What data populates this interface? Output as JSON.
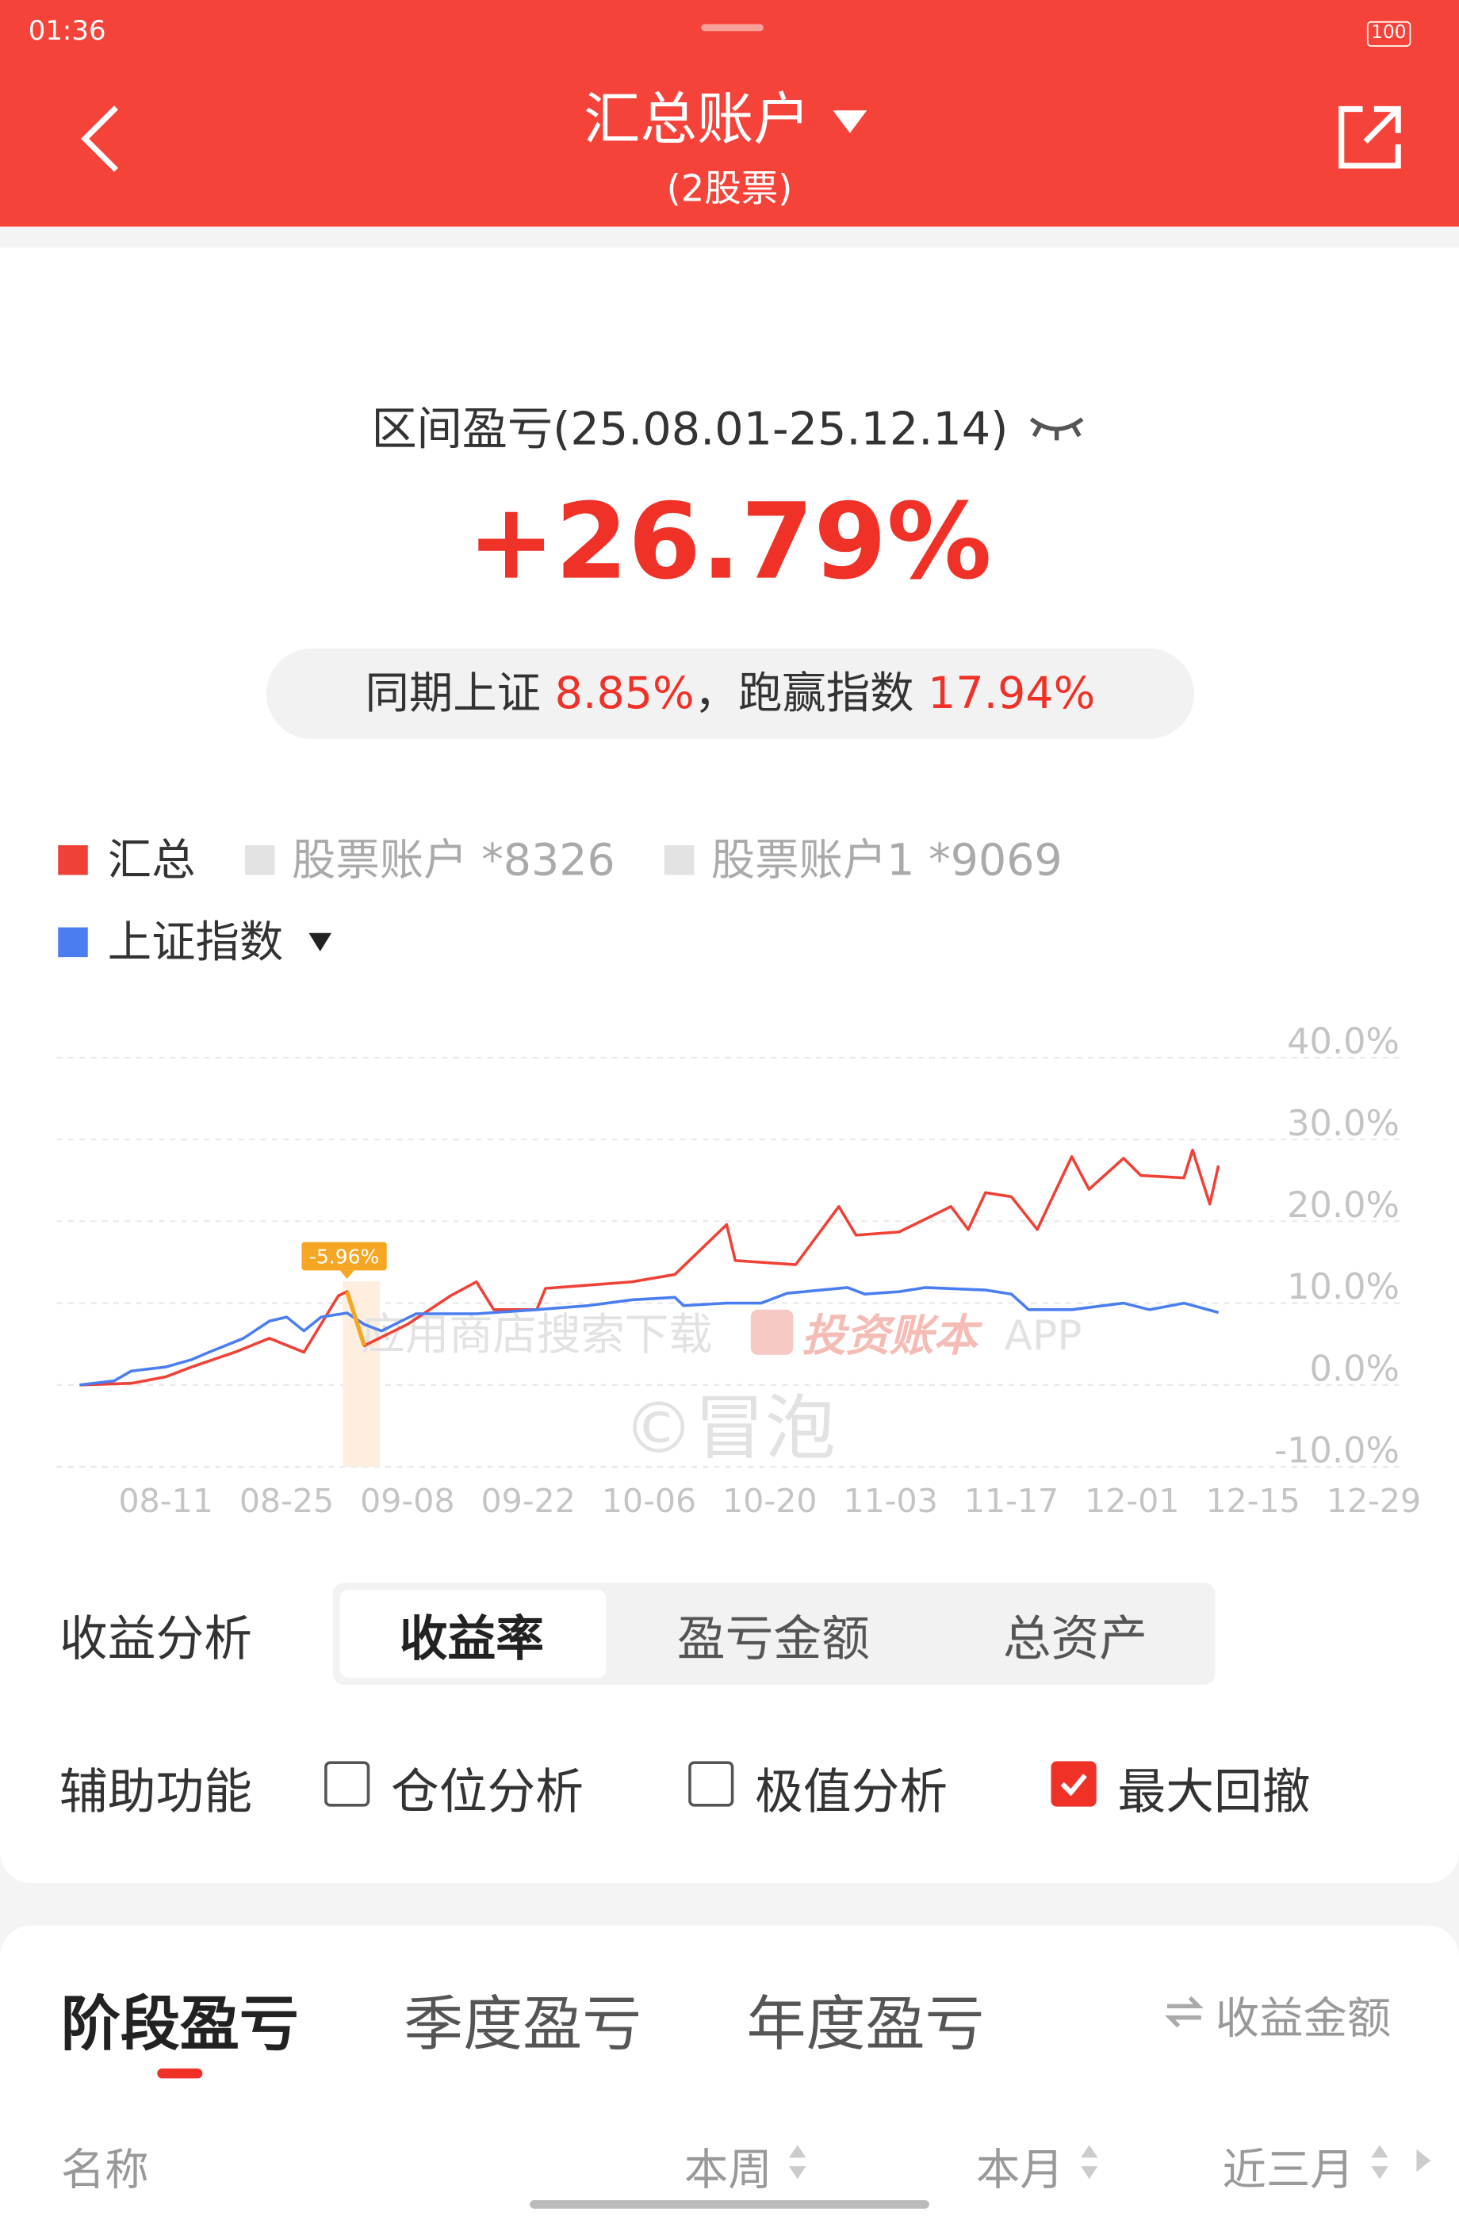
{
  "status_bar": {
    "time": "01:36",
    "battery": "100"
  },
  "header": {
    "title": "汇总账户",
    "subtitle": "(2股票)"
  },
  "summary": {
    "period_label": "区间盈亏(25.08.01-25.12.14)",
    "return": "+26.79%",
    "benchmark_label": "同期上证",
    "benchmark_value": "8.85%",
    "separator": "，",
    "excess_label": "跑赢指数",
    "excess_value": "17.94%"
  },
  "chart": {
    "type": "line",
    "series": [
      {
        "name": "汇总",
        "color": "#ef4136",
        "x": [
          "08-01",
          "08-07",
          "08-11",
          "08-14",
          "08-19",
          "08-23",
          "08-27",
          "08-31",
          "09-01",
          "09-03",
          "09-08",
          "09-13",
          "09-16",
          "09-18",
          "09-23",
          "09-24",
          "10-04",
          "10-09",
          "10-15",
          "10-16",
          "10-23",
          "10-28",
          "10-30",
          "11-04",
          "11-10",
          "11-12",
          "11-14",
          "11-17",
          "11-20",
          "11-24",
          "11-26",
          "11-30",
          "12-02",
          "12-07",
          "12-08",
          "12-10",
          "12-11"
        ],
        "values": [
          0,
          0.2,
          1.0,
          2.2,
          4.0,
          5.7,
          4.0,
          10.9,
          11.4,
          4.8,
          7.4,
          10.9,
          12.6,
          9.2,
          9.2,
          11.8,
          12.6,
          13.5,
          19.6,
          15.2,
          14.7,
          21.8,
          18.3,
          18.7,
          21.8,
          19.0,
          23.5,
          23.0,
          19.0,
          27.9,
          23.9,
          27.7,
          25.6,
          25.3,
          28.7,
          22.1,
          26.8
        ]
      },
      {
        "name": "上证指数",
        "color": "#4a7ef0",
        "x": [
          "08-01",
          "08-05",
          "08-07",
          "08-11",
          "08-14",
          "08-16",
          "08-20",
          "08-23",
          "08-25",
          "08-27",
          "08-29",
          "09-01",
          "09-03",
          "09-05",
          "09-09",
          "09-16",
          "09-23",
          "09-29",
          "10-04",
          "10-09",
          "10-10",
          "10-15",
          "10-19",
          "10-22",
          "10-29",
          "10-31",
          "11-04",
          "11-07",
          "11-14",
          "11-17",
          "11-19",
          "11-24",
          "11-30",
          "12-03",
          "12-07",
          "12-11"
        ],
        "values": [
          0,
          0.5,
          1.7,
          2.2,
          3.1,
          4.0,
          5.7,
          7.8,
          8.3,
          6.6,
          8.3,
          8.8,
          7.4,
          6.6,
          8.7,
          8.7,
          9.2,
          9.7,
          10.4,
          10.7,
          9.7,
          10.0,
          10.0,
          11.2,
          11.9,
          11.1,
          11.4,
          11.9,
          11.6,
          11.1,
          9.2,
          9.2,
          10.0,
          9.2,
          10.0,
          8.85
        ]
      }
    ],
    "legend_inactive": {
      "names": [
        "股票账户 *8326",
        "股票账户1 *9069"
      ],
      "color": "#e3e3e3"
    },
    "xticks": [
      "08-11",
      "08-25",
      "09-08",
      "09-22",
      "10-06",
      "10-20",
      "11-03",
      "11-17",
      "12-01",
      "12-15",
      "12-29"
    ],
    "xlim": [
      "07-30",
      "12-31"
    ],
    "ylim": [
      -10,
      40
    ],
    "yticks": [
      {
        "value": 40,
        "label": "40.0%"
      },
      {
        "value": 30,
        "label": "30.0%"
      },
      {
        "value": 20,
        "label": "20.0%"
      },
      {
        "value": 10,
        "label": "10.0%"
      },
      {
        "value": 0,
        "label": "0.0%"
      },
      {
        "value": -10,
        "label": "-10.0%"
      }
    ],
    "grid": true,
    "annotation": {
      "label": "-5.96%",
      "start": "09-01",
      "end": "09-03",
      "color": "#f5a623"
    },
    "watermarks": [
      "应用商店搜索下载",
      "投资账本",
      "APP",
      "©冒泡"
    ]
  },
  "analysis": {
    "label": "收益分析",
    "tabs": [
      "收益率",
      "盈亏金额",
      "总资产"
    ],
    "selected": 0
  },
  "aux": {
    "label": "辅助功能",
    "options": [
      {
        "label": "仓位分析",
        "checked": false
      },
      {
        "label": "极值分析",
        "checked": false
      },
      {
        "label": "最大回撤",
        "checked": true
      }
    ]
  },
  "period": {
    "tabs": [
      "阶段盈亏",
      "季度盈亏",
      "年度盈亏"
    ],
    "selected": 0,
    "toggle": "收益金额",
    "columns": [
      "名称",
      "本周",
      "本月",
      "近三月"
    ]
  }
}
